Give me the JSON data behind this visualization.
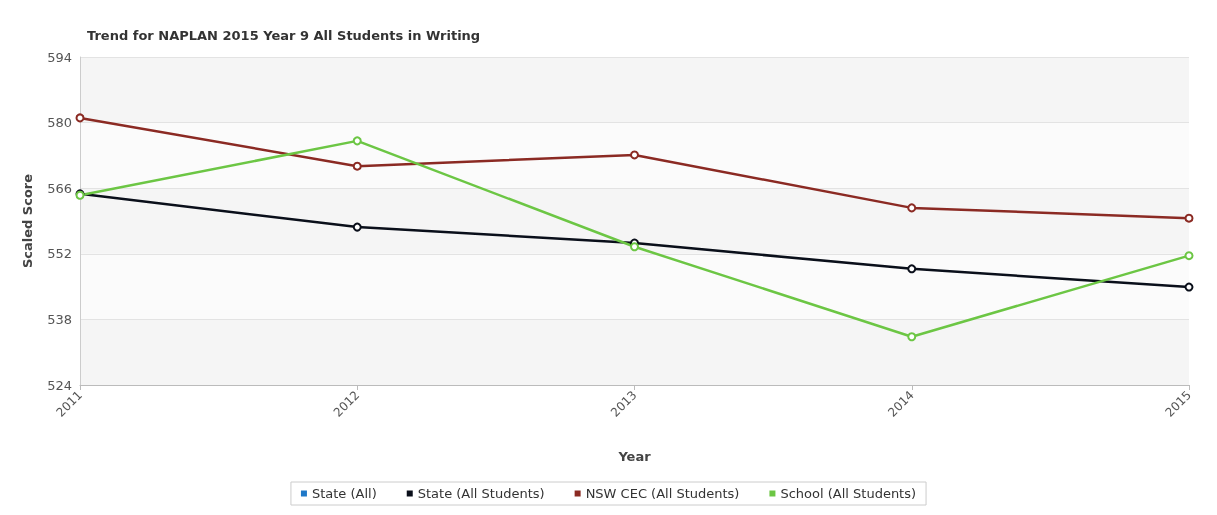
{
  "chart_data": {
    "type": "line",
    "title": "Trend for NAPLAN 2015 Year 9 All Students in Writing",
    "xlabel": "Year",
    "ylabel": "Scaled Score",
    "categories": [
      "2011",
      "2012",
      "2013",
      "2014",
      "2015"
    ],
    "series": [
      {
        "name": "State (All)",
        "color": "#1f78c8",
        "values": [
          null,
          null,
          null,
          null,
          null
        ]
      },
      {
        "name": "State (All Students)",
        "color": "#0a0f1a",
        "values": [
          564.8,
          557.7,
          554.3,
          548.8,
          544.9
        ]
      },
      {
        "name": "NSW CEC (All Students)",
        "color": "#8b2a23",
        "values": [
          581.0,
          570.7,
          573.1,
          561.8,
          559.6
        ]
      },
      {
        "name": "School (All Students)",
        "color": "#6cc644",
        "values": [
          564.5,
          576.1,
          553.5,
          534.3,
          551.6
        ]
      }
    ],
    "ylim": [
      524,
      594
    ],
    "yticks": [
      524,
      538,
      552,
      566,
      580,
      594
    ],
    "grid": "y",
    "legend": "bottom",
    "marker": "circle",
    "line_style": "solid"
  }
}
